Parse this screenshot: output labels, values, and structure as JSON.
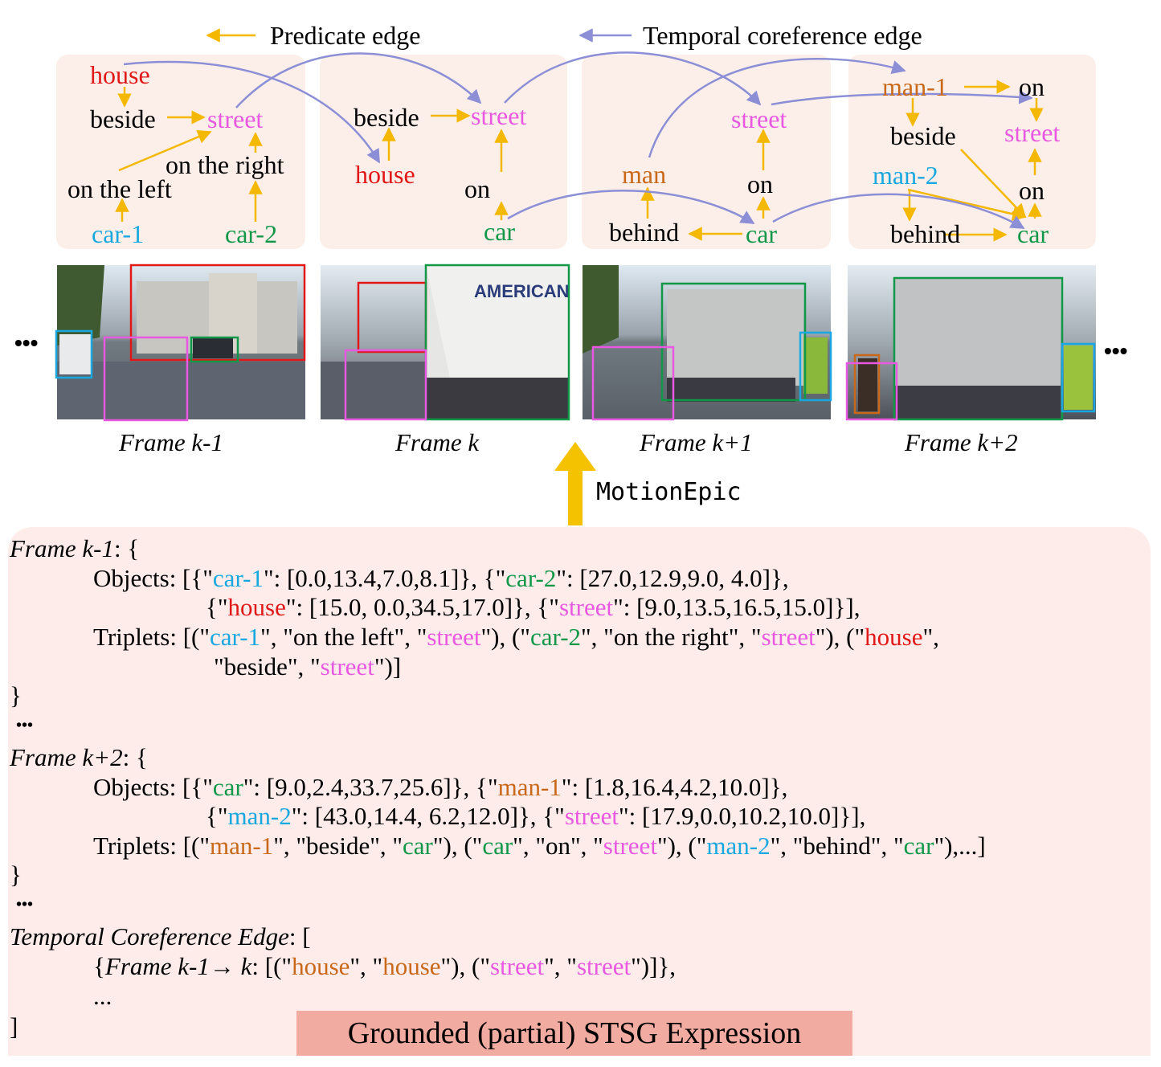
{
  "colors": {
    "predicate": "#f5b800",
    "coref": "#8c8fd6",
    "red": "#e01818",
    "cyan": "#18a8e0",
    "green": "#109848",
    "pink": "#e858e0",
    "orange": "#c86818",
    "panel": "#fcefea"
  },
  "legend": {
    "predicate_label": "Predicate edge",
    "coref_label": "Temporal coreference edge"
  },
  "graph": {
    "f1": {
      "house": "house",
      "beside": "beside",
      "street": "street",
      "on_right": "on the right",
      "on_left": "on the left",
      "car1": "car-1",
      "car2": "car-2"
    },
    "f2": {
      "beside": "beside",
      "street": "street",
      "house": "house",
      "on": "on",
      "car": "car"
    },
    "f3": {
      "street": "street",
      "man": "man",
      "on": "on",
      "behind": "behind",
      "car": "car"
    },
    "f4": {
      "man1": "man-1",
      "on_top": "on",
      "beside": "beside",
      "street": "street",
      "man2": "man-2",
      "on": "on",
      "behind": "behind",
      "car": "car"
    }
  },
  "frames": {
    "ellipsis_left": "•••",
    "ellipsis_right": "•••",
    "captions": [
      "Frame k-1",
      "Frame k",
      "Frame k+1",
      "Frame k+2"
    ]
  },
  "arrow_label": "MotionEpic",
  "expression": {
    "f1_head": "Frame k-1",
    "f1_head_tail": ": {",
    "objects_label": "Objects: [{\"",
    "f1_obj": {
      "car1": "car-1",
      "car1_val": "\": [0.0,13.4,7.0,8.1]}, {\"",
      "car2": "car-2",
      "car2_val": "\": [27.0,12.9,9.0, 4.0]},",
      "l2_pre": "{\"",
      "house": "house",
      "house_val": "\": [15.0, 0.0,34.5,17.0]}, {\"",
      "street": "street",
      "street_val": "\": [9.0,13.5,16.5,15.0]}],"
    },
    "triplets_label": "Triplets: [(\"",
    "f1_trip": {
      "a": "car-1",
      "b": "\", \"on the left\", \"",
      "c": "street",
      "d": "\"), (\"",
      "e": "car-2",
      "f": "\", \"on the right\", \"",
      "g": "street",
      "h": "\"), (\"",
      "i": "house",
      "j": "\",",
      "l2_a": "\"beside\", \"",
      "l2_b": "street",
      "l2_c": "\")]"
    },
    "close_brace": "}",
    "dots": "•••",
    "f3_head": "Frame k+2",
    "f3_head_tail": ": {",
    "f3_obj": {
      "car": "car",
      "car_val": "\": [9.0,2.4,33.7,25.6]}, {\"",
      "man1": "man-1",
      "man1_val": "\": [1.8,16.4,4.2,10.0]},",
      "l2_pre": "{\"",
      "man2": "man-2",
      "man2_val": "\": [43.0,14.4, 6.2,12.0]}, {\"",
      "street": "street",
      "street_val": "\": [17.9,0.0,10.2,10.0]}],"
    },
    "f3_trip": {
      "a": "man-1",
      "b": "\", \"beside\", \"",
      "c": "car",
      "d": "\"), (\"",
      "e": "car",
      "f": "\", \"on\", \"",
      "g": "street",
      "h": "\"), (\"",
      "i": "man-2",
      "j": "\", \"behind\", \"",
      "k": "car",
      "l": "\"),...]"
    },
    "tce_head": "Temporal Coreference Edge",
    "tce_tail": ": [",
    "tce_open": "{",
    "tce_frame": "Frame k-1",
    "tce_arrow": "→ k",
    "tce_a": ": [(\"",
    "tce_house1": "house",
    "tce_b": "\", \"",
    "tce_house2": "house",
    "tce_c": "\"), (\"",
    "tce_street1": "street",
    "tce_d": "\", \"",
    "tce_street2": "street",
    "tce_e": "\")]},",
    "tce_more": "...",
    "close_bracket": "]"
  },
  "banner": "Grounded (partial) STSG Expression"
}
